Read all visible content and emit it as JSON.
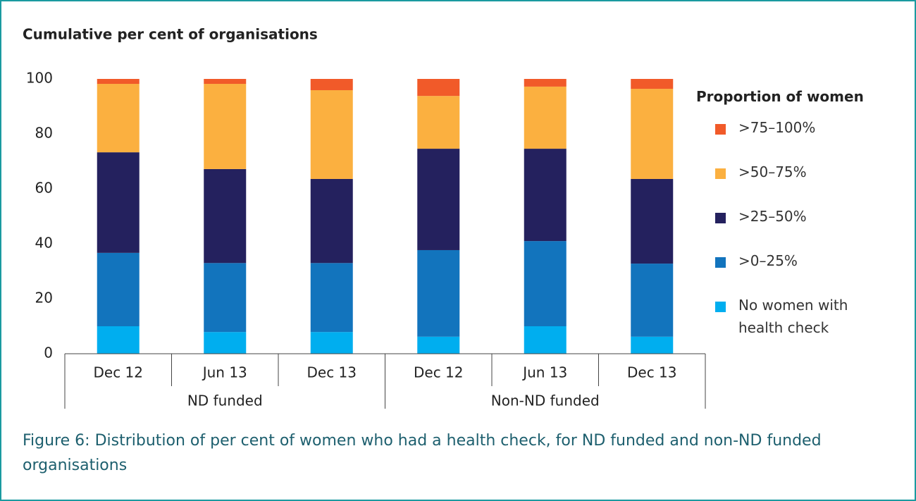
{
  "chart_data": {
    "type": "stacked_bar",
    "title": "Cumulative per cent of organisations",
    "categories": [
      "Dec 12",
      "Jun 13",
      "Dec 13",
      "Dec 12",
      "Jun 13",
      "Dec 13"
    ],
    "groups": [
      "ND funded",
      "Non-ND funded"
    ],
    "ylim": [
      0,
      100
    ],
    "yticks": [
      0,
      20,
      40,
      60,
      80,
      100
    ],
    "legend_title": "Proportion of women",
    "series": [
      {
        "name": "No women with health check",
        "color": "#00aeef",
        "values": [
          10,
          7.9,
          7.9,
          6.2,
          10,
          6.2
        ]
      },
      {
        "name": ">0–25%",
        "color": "#1274bd",
        "values": [
          26.7,
          25.1,
          25.1,
          31.5,
          31,
          26.6
        ]
      },
      {
        "name": ">25–50%",
        "color": "#24215e",
        "values": [
          36.6,
          34.2,
          30.6,
          36.9,
          33.6,
          30.8
        ]
      },
      {
        "name": ">50–75%",
        "color": "#fbb040",
        "values": [
          24.9,
          31,
          32.3,
          19.2,
          22.6,
          32.8
        ]
      },
      {
        "name": ">75–100%",
        "color": "#f15a29",
        "values": [
          1.8,
          1.8,
          4.1,
          6.2,
          2.8,
          3.6
        ]
      }
    ],
    "caption": "Figure 6: Distribution of per cent of women who had a health check, for ND funded and non-ND funded organisations"
  }
}
